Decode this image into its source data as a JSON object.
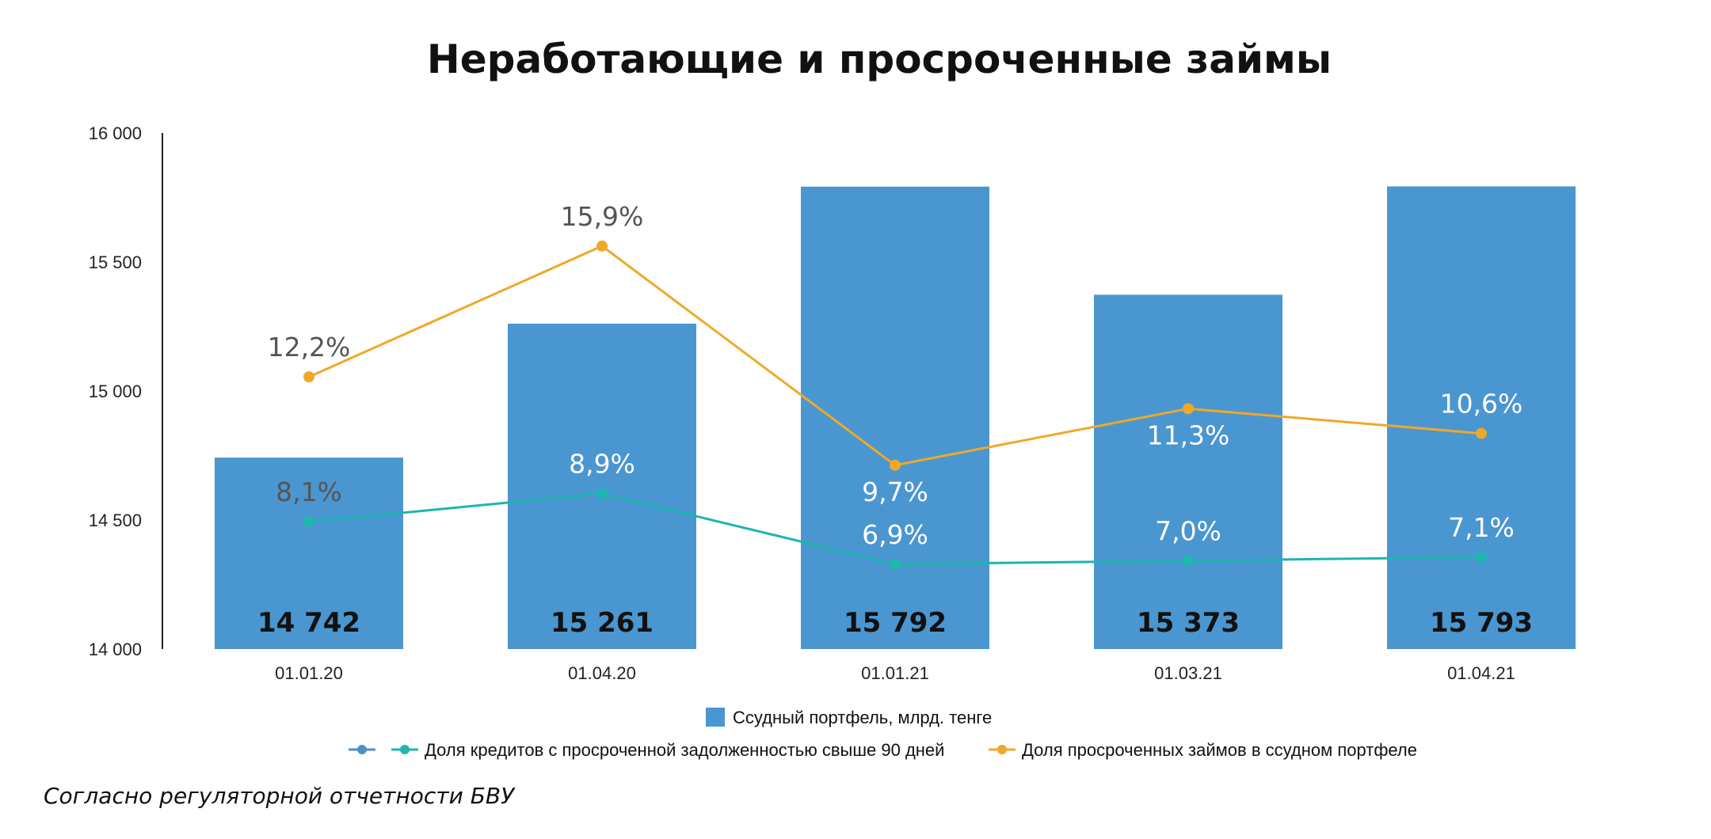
{
  "chart_data": {
    "type": "bar",
    "title": "Неработающие и просроченные займы",
    "categories": [
      "01.01.20",
      "01.04.20",
      "01.01.21",
      "01.03.21",
      "01.04.21"
    ],
    "ylim": [
      14000,
      16000
    ],
    "yticks": [
      14000,
      14500,
      15000,
      15500,
      16000
    ],
    "ytick_labels": [
      "14 000",
      "14 500",
      "15 000",
      "15 500",
      "16 000"
    ],
    "grid": false,
    "legend_position": "bottom",
    "series": [
      {
        "name": "Ссудный портфель, млрд. тенге",
        "type": "bar",
        "color": "#4a96d0",
        "values": [
          14742,
          15261,
          15792,
          15373,
          15793
        ],
        "labels": [
          "14 742",
          "15 261",
          "15 792",
          "15 373",
          "15 793"
        ]
      },
      {
        "name": "Доля кредитов с просроченной задолженностью свыше 90 дней",
        "type": "line",
        "color": "#1fb5b0",
        "values": [
          8.1,
          8.9,
          6.9,
          7.0,
          7.1
        ],
        "labels": [
          "8,1%",
          "8,9%",
          "6,9%",
          "7,0%",
          "7,1%"
        ]
      },
      {
        "name": "Доля просроченных займов в ссудном портфеле",
        "type": "line",
        "color": "#f0a828",
        "values": [
          12.2,
          15.9,
          9.7,
          11.3,
          10.6
        ],
        "labels": [
          "12,2%",
          "15,9%",
          "9,7%",
          "11,3%",
          "10,6%"
        ]
      }
    ],
    "extra_legend_marker_color": "#4f8fc8",
    "source_note": "Согласно регуляторной отчетности БВУ"
  }
}
